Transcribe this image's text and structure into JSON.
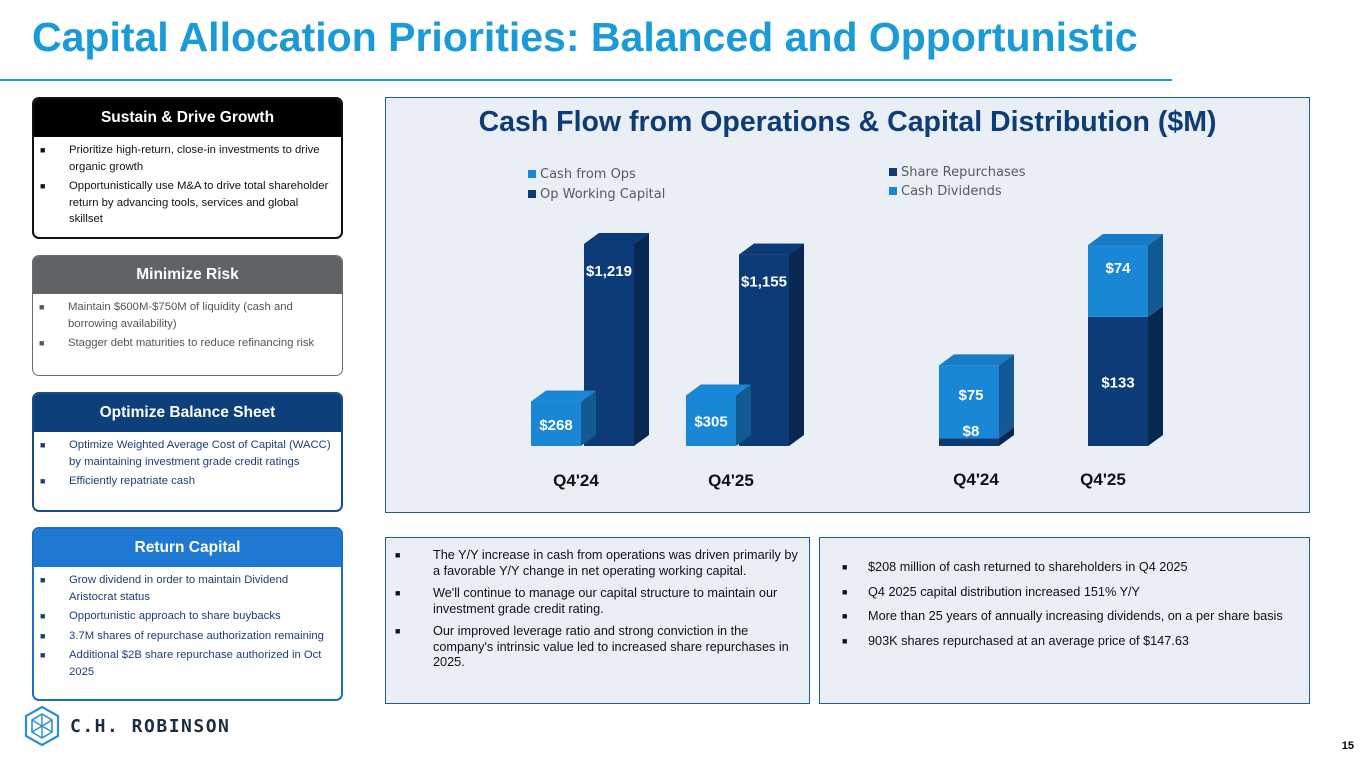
{
  "page": {
    "title": "Capital Allocation Priorities: Balanced and Opportunistic",
    "page_number": "15"
  },
  "priorities": [
    {
      "heading": "Sustain & Drive Growth",
      "bullets": [
        "Prioritize high-return, close-in investments to drive organic growth",
        "Opportunistically use M&A to drive total shareholder return by advancing tools, services and global skillset"
      ]
    },
    {
      "heading": "Minimize Risk",
      "bullets": [
        "Maintain $600M-$750M of liquidity (cash and borrowing availability)",
        "Stagger debt maturities to reduce refinancing risk"
      ]
    },
    {
      "heading": "Optimize Balance Sheet",
      "bullets": [
        "Optimize Weighted Average Cost of Capital (WACC) by maintaining investment grade credit ratings",
        "Efficiently repatriate cash"
      ]
    },
    {
      "heading": "Return Capital",
      "bullets": [
        "Grow dividend in order to maintain Dividend Aristocrat status",
        "Opportunistic approach to share buybacks",
        "3.7M shares of repurchase authorization remaining",
        "Additional $2B share repurchase authorized in Oct 2025"
      ]
    }
  ],
  "bullet_glyph": "■",
  "colors": {
    "title": "#1a9bd7",
    "chart_title": "#0e3c74",
    "light_blue_bar": "#1a86d6",
    "dark_blue_bar": "#0c3b78",
    "panel_bg": "#eaeef5"
  },
  "chart_data": [
    {
      "type": "bar",
      "title": "Cash Flow from Operations & Capital Distribution ($M)",
      "categories": [
        "Q4'24",
        "Q4'25"
      ],
      "grouping": "grouped",
      "series": [
        {
          "name": "Cash from Ops",
          "values": [
            268,
            305
          ],
          "labels": [
            "$268",
            "$305"
          ],
          "color": "#1a86d6"
        },
        {
          "name": "Op Working Capital",
          "values": [
            1219,
            1155
          ],
          "labels": [
            "$1,219",
            "$1,155"
          ],
          "color": "#0c3b78"
        }
      ],
      "ylim": [
        0,
        1400
      ],
      "grid": false,
      "legend": "top-left"
    },
    {
      "type": "bar",
      "categories": [
        "Q4'24",
        "Q4'25"
      ],
      "grouping": "stacked",
      "series": [
        {
          "name": "Share Repurchases",
          "values": [
            8,
            133
          ],
          "labels": [
            "$8",
            "$133"
          ],
          "color": "#0c3b78"
        },
        {
          "name": "Cash Dividends",
          "values": [
            75,
            74
          ],
          "labels": [
            "$75",
            "$74"
          ],
          "color": "#1a86d6"
        }
      ],
      "ylim": [
        0,
        230
      ],
      "grid": false,
      "legend": "top-left"
    }
  ],
  "commentary_left": [
    "The Y/Y increase in cash from operations was driven primarily by a favorable Y/Y change in net operating working capital.",
    "We'll continue to manage our capital structure to maintain our investment grade credit rating.",
    "Our improved leverage ratio and strong conviction in the company's intrinsic value led to increased share repurchases in 2025."
  ],
  "commentary_right": [
    "$208 million of cash returned to shareholders in Q4 2025",
    "Q4 2025 capital distribution increased 151% Y/Y",
    "More than 25 years of annually increasing dividends, on a per share basis",
    "903K shares repurchased at an average price of $147.63"
  ],
  "logo": {
    "text": "C.H. ROBINSON",
    "icon": "hexagon-cube-icon"
  }
}
